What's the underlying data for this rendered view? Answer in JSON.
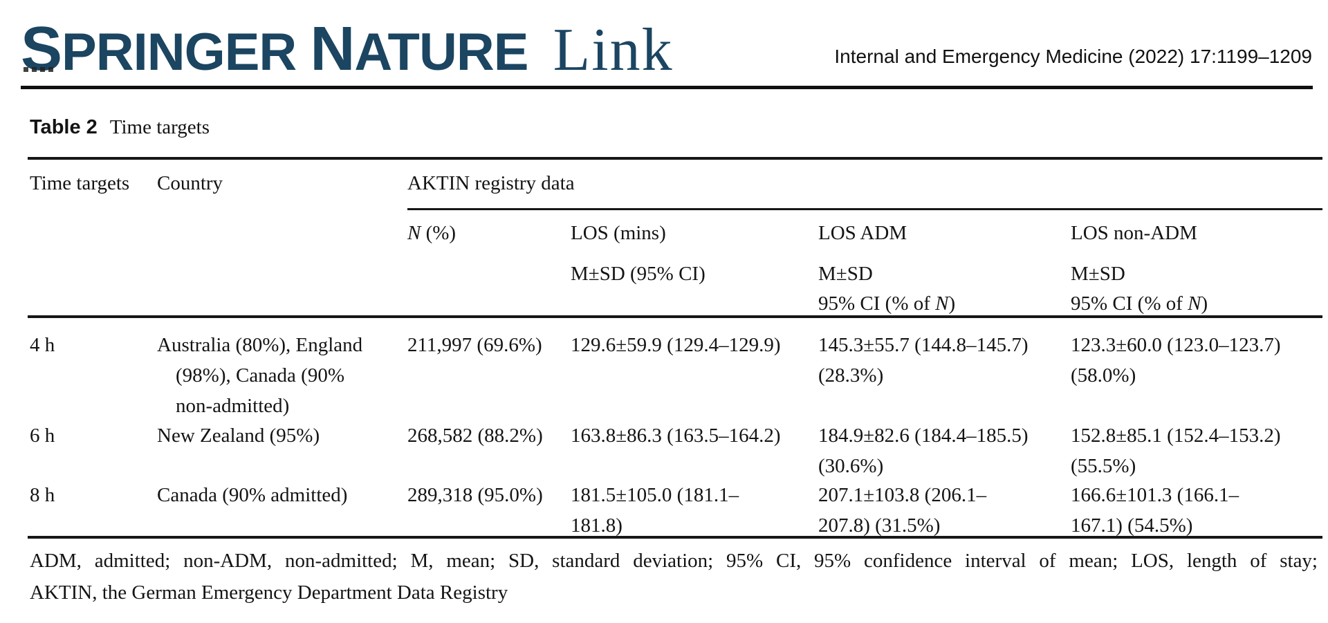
{
  "header": {
    "logo_words": [
      {
        "initial": "S",
        "rest": "PRINGER"
      },
      {
        "initial": "N",
        "rest": "ATURE"
      }
    ],
    "logo_link": "Link",
    "journal_ref": "Internal and Emergency Medicine (2022) 17:1199–1209"
  },
  "table": {
    "caption_label": "Table 2",
    "caption_title": "Time targets",
    "headers": {
      "time_targets": "Time targets",
      "country": "Country",
      "group": "AKTIN registry data",
      "n_italic": "N",
      "n_rest": " (%)",
      "los": "LOS (mins)",
      "los_sub": "M±SD (95% CI)",
      "adm": "LOS ADM",
      "adm_sub1": "M±SD",
      "nonadm": "LOS non-ADM",
      "nonadm_sub1": "M±SD",
      "ci_pre": "95% CI (% of ",
      "ci_italic": "N",
      "ci_post": ")"
    },
    "rows": [
      {
        "time": "4 h",
        "country_lines": [
          "Australia (80%), England",
          "(98%), Canada (90%",
          "non-admitted)"
        ],
        "n": "211,997 (69.6%)",
        "los_lines": [
          "129.6±59.9 (129.4–129.9)"
        ],
        "adm_lines": [
          "145.3±55.7 (144.8–145.7)",
          "(28.3%)"
        ],
        "nonadm_lines": [
          "123.3±60.0 (123.0–123.7)",
          "(58.0%)"
        ]
      },
      {
        "time": "6 h",
        "country_lines": [
          "New Zealand (95%)"
        ],
        "n": "268,582 (88.2%)",
        "los_lines": [
          "163.8±86.3 (163.5–164.2)"
        ],
        "adm_lines": [
          "184.9±82.6 (184.4–185.5)",
          "(30.6%)"
        ],
        "nonadm_lines": [
          "152.8±85.1 (152.4–153.2)",
          "(55.5%)"
        ]
      },
      {
        "time": "8 h",
        "country_lines": [
          "Canada (90% admitted)"
        ],
        "n": "289,318 (95.0%)",
        "los_lines": [
          "181.5±105.0 (181.1–",
          "181.8)"
        ],
        "adm_lines": [
          "207.1±103.8 (206.1–",
          "207.8) (31.5%)"
        ],
        "nonadm_lines": [
          "166.6±101.3 (166.1–",
          "167.1) (54.5%)"
        ]
      }
    ],
    "footnote_line1": "ADM, admitted; non-ADM, non-admitted; M, mean; SD, standard deviation; 95% CI, 95% confidence interval of mean; LOS, length of stay;",
    "footnote_line2": "AKTIN, the German Emergency Department Data Registry"
  },
  "colors": {
    "logo_blue": "#1b4561",
    "rule": "#161616",
    "text": "#141414"
  }
}
